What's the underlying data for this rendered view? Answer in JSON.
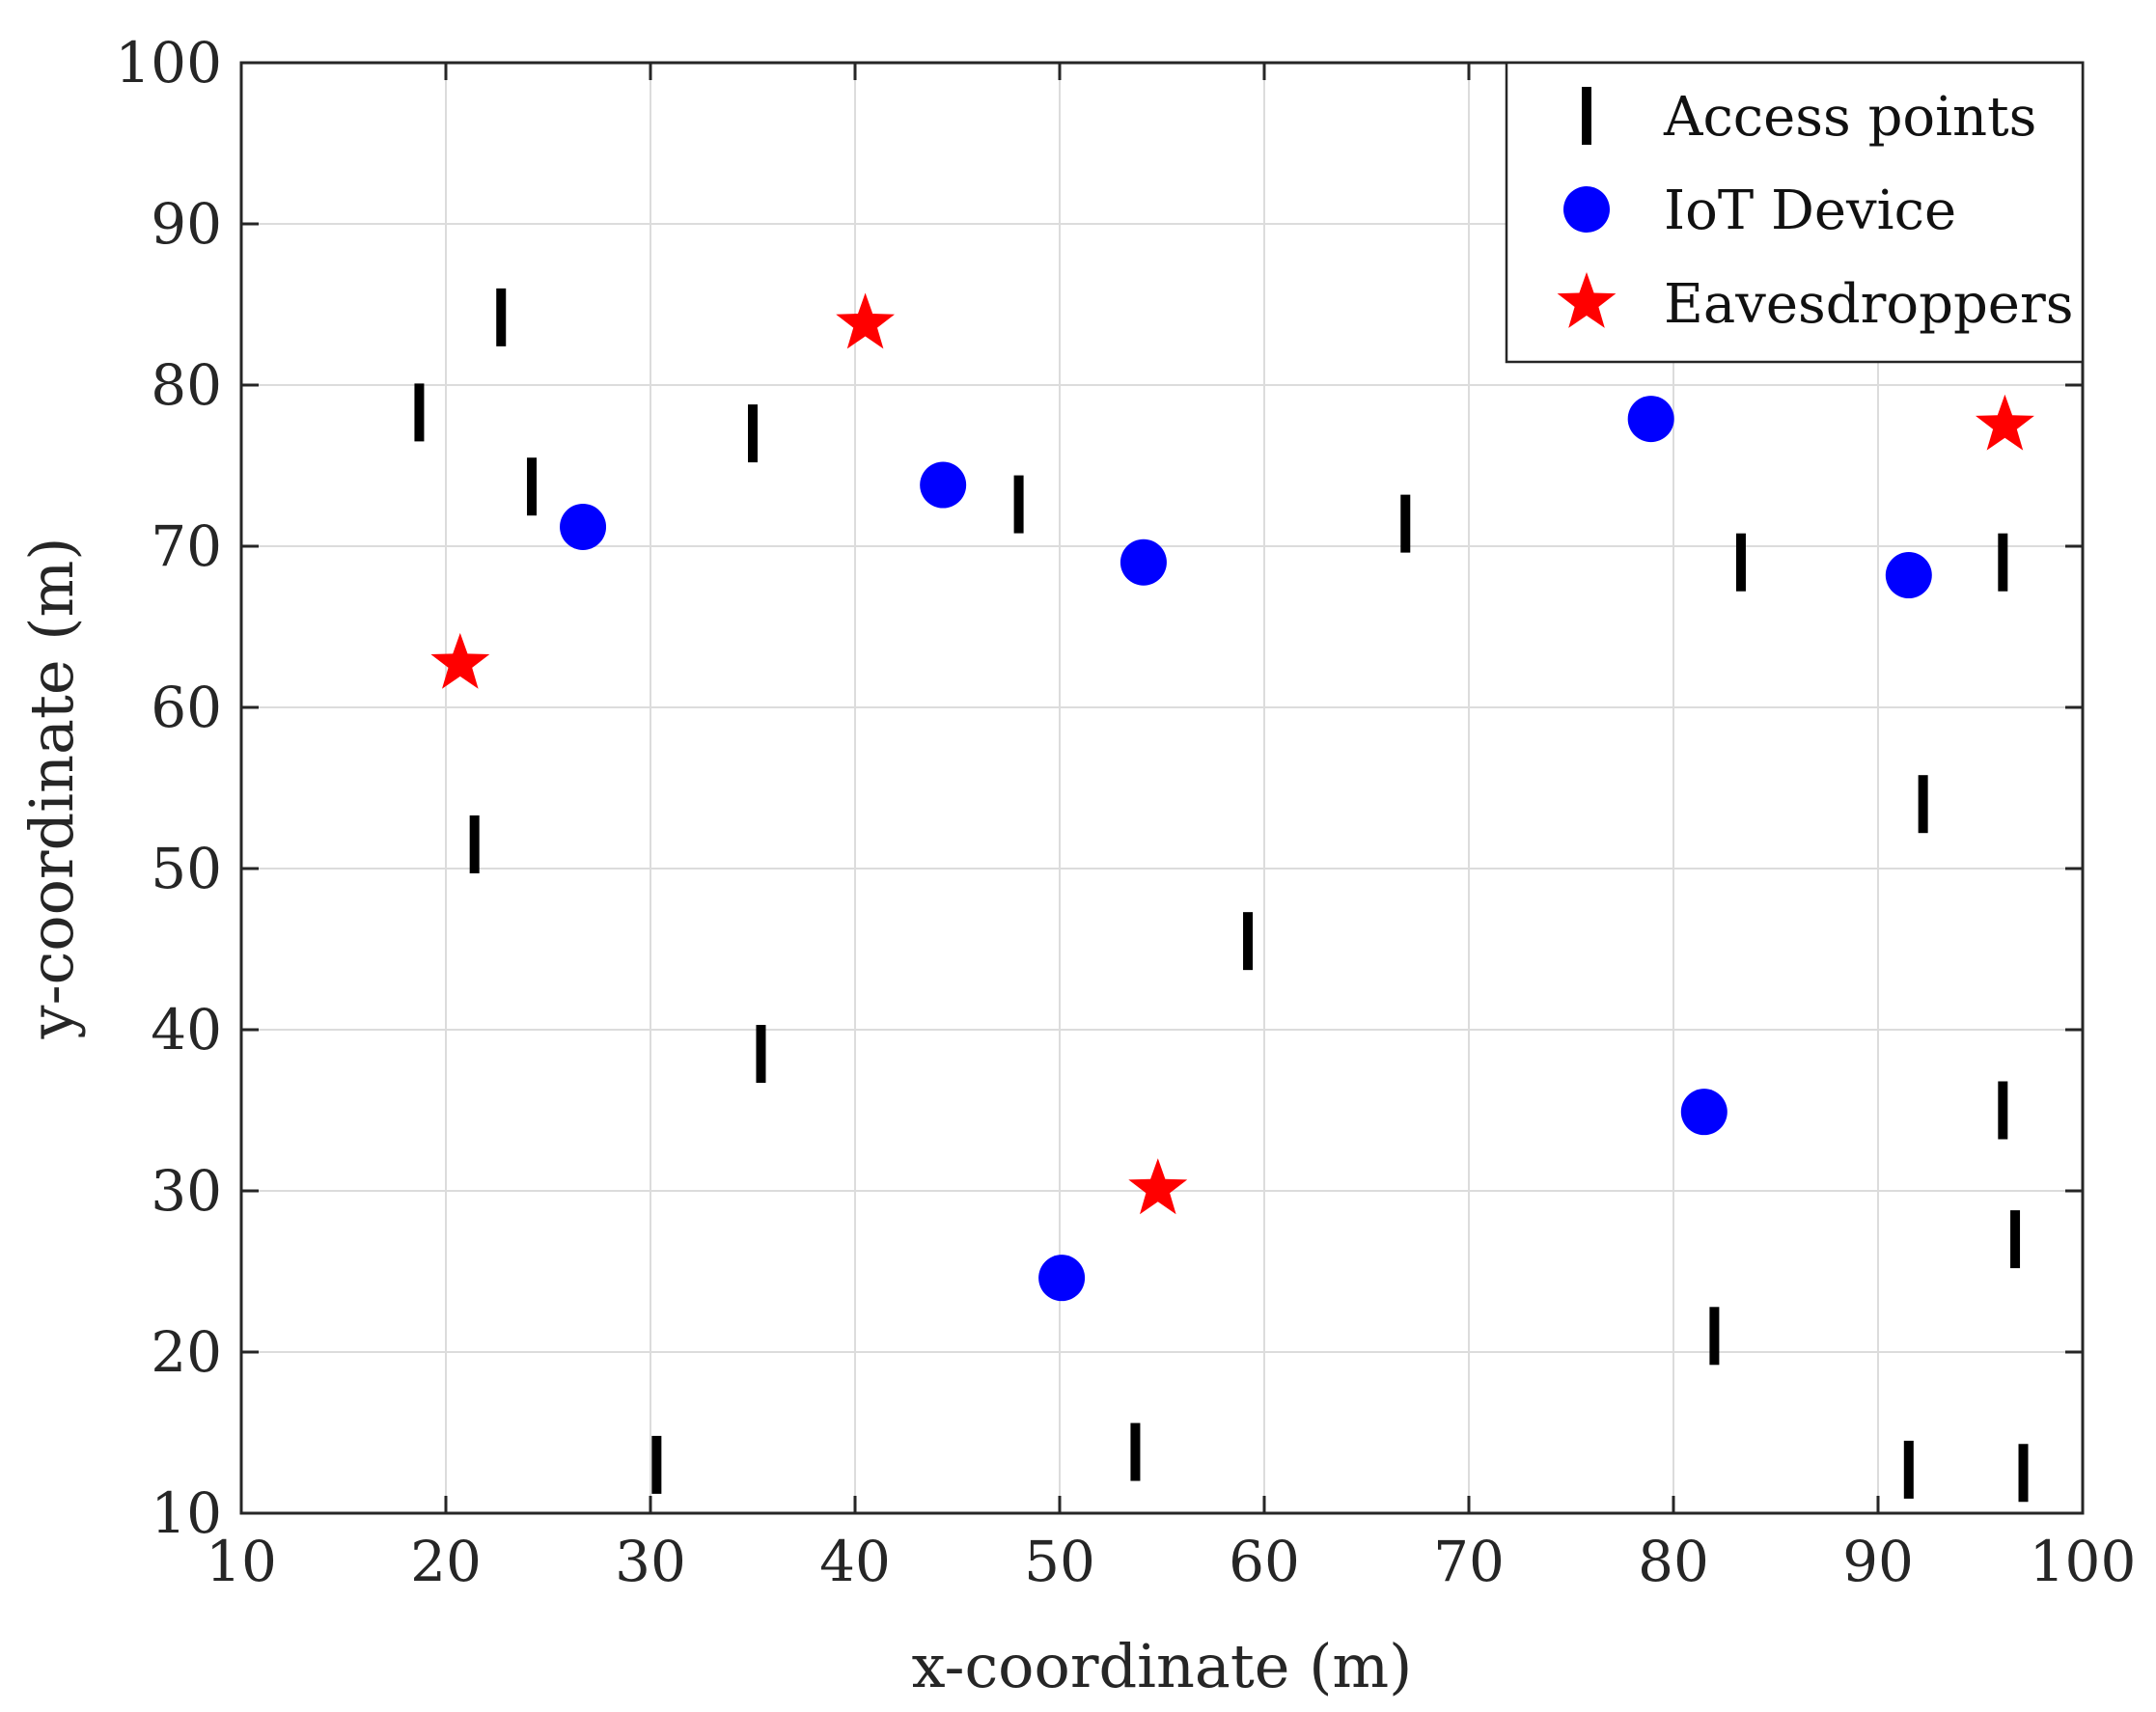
{
  "chart_data": {
    "type": "scatter",
    "title": "",
    "xlabel": "x-coordinate (m)",
    "ylabel": "y-coordinate (m)",
    "xlim": [
      10,
      100
    ],
    "ylim": [
      10,
      100
    ],
    "xticks": [
      10,
      20,
      30,
      40,
      50,
      60,
      70,
      80,
      90,
      100
    ],
    "yticks": [
      10,
      20,
      30,
      40,
      50,
      60,
      70,
      80,
      90,
      100
    ],
    "grid": true,
    "legend_position": "top-right",
    "series": [
      {
        "name": "Access points",
        "marker": "vertical-bar",
        "color": "#000000",
        "points": [
          [
            22.7,
            84.2
          ],
          [
            18.7,
            78.3
          ],
          [
            35.0,
            77.0
          ],
          [
            24.2,
            73.7
          ],
          [
            48.0,
            72.6
          ],
          [
            66.9,
            71.4
          ],
          [
            83.3,
            69.0
          ],
          [
            96.1,
            69.0
          ],
          [
            92.2,
            54.0
          ],
          [
            21.4,
            51.5
          ],
          [
            59.2,
            45.5
          ],
          [
            35.4,
            38.5
          ],
          [
            96.1,
            35.0
          ],
          [
            96.7,
            27.0
          ],
          [
            82.0,
            21.0
          ],
          [
            53.7,
            13.8
          ],
          [
            30.3,
            13.0
          ],
          [
            91.5,
            12.7
          ],
          [
            97.1,
            12.5
          ]
        ]
      },
      {
        "name": "IoT Device",
        "marker": "circle",
        "color": "#0000ff",
        "points": [
          [
            26.7,
            71.2
          ],
          [
            44.3,
            73.8
          ],
          [
            54.1,
            69.0
          ],
          [
            78.9,
            77.9
          ],
          [
            91.5,
            68.2
          ],
          [
            81.5,
            34.9
          ],
          [
            50.1,
            24.6
          ]
        ]
      },
      {
        "name": "Eavesdroppers",
        "marker": "star",
        "color": "#ff0000",
        "points": [
          [
            40.5,
            83.8
          ],
          [
            20.7,
            62.7
          ],
          [
            96.2,
            77.5
          ],
          [
            54.8,
            30.1
          ]
        ]
      }
    ]
  }
}
